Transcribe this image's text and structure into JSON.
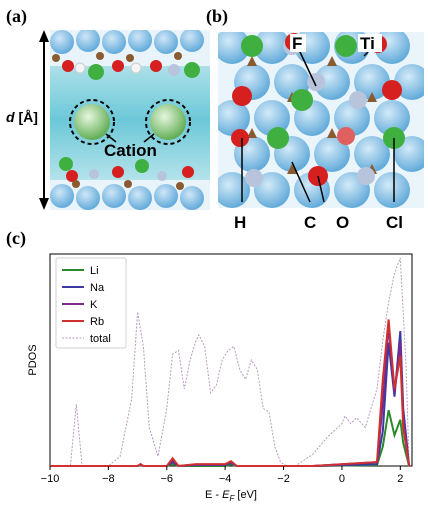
{
  "figure": {
    "panel_a": {
      "letter": "(a)",
      "d_label_main": "d",
      "d_label_unit": " [Å]",
      "cation_label": "Cation"
    },
    "panel_b": {
      "letter": "(b)",
      "labels": [
        "F",
        "Ti",
        "H",
        "C",
        "O",
        "Cl"
      ]
    },
    "panel_c": {
      "letter": "(c)"
    }
  },
  "chart_data": {
    "type": "line",
    "xlabel": "E - E_F [eV]",
    "ylabel": "PDOS",
    "xlim": [
      -10,
      2.4
    ],
    "x_ticks": [
      -10,
      -8,
      -6,
      -4,
      -2,
      0,
      2
    ],
    "x_tick_labels": [
      "−10",
      "−8",
      "−6",
      "−4",
      "−2",
      "0",
      "2"
    ],
    "legend_position": "top-left",
    "colors": {
      "Li": "#2a8a2a",
      "Na": "#3a3aa0",
      "K": "#7a2a8a",
      "Rb": "#d03030",
      "total": "#b89ac0"
    },
    "series": [
      {
        "name": "Li",
        "x": [
          -10,
          -7,
          -6.9,
          -6.8,
          -6,
          -5.8,
          -5.6,
          -5,
          -4,
          -3.8,
          -3.6,
          -3,
          -1,
          1.2,
          1.4,
          1.6,
          1.8,
          2.0,
          2.1,
          2.3
        ],
        "y": [
          0,
          0,
          0.004,
          0,
          0,
          0.01,
          0,
          0,
          0,
          0.008,
          0,
          0,
          0,
          0.005,
          0.1,
          0.29,
          0.16,
          0.24,
          0.12,
          0
        ]
      },
      {
        "name": "Na",
        "x": [
          -10,
          -7,
          -6.9,
          -6.8,
          -6,
          -5.8,
          -5.6,
          -5,
          -4,
          -3.8,
          -3.6,
          -3,
          -1,
          1.2,
          1.4,
          1.6,
          1.8,
          2.0,
          2.1,
          2.3
        ],
        "y": [
          0,
          0,
          0.006,
          0,
          0,
          0.02,
          0,
          0.005,
          0.005,
          0.015,
          0,
          0,
          0,
          0.01,
          0.18,
          0.64,
          0.36,
          0.7,
          0.3,
          0
        ]
      },
      {
        "name": "K",
        "x": [
          -10,
          -7,
          -6.9,
          -6.8,
          -6,
          -5.8,
          -5.6,
          -5,
          -4,
          -3.8,
          -3.6,
          -3,
          -1,
          1.2,
          1.4,
          1.6,
          1.8,
          2.0,
          2.1,
          2.3
        ],
        "y": [
          0,
          0,
          0.008,
          0,
          0,
          0.03,
          0,
          0.008,
          0.008,
          0.02,
          0,
          0,
          0,
          0.02,
          0.32,
          0.73,
          0.38,
          0.64,
          0.24,
          0
        ]
      },
      {
        "name": "Rb",
        "x": [
          -10,
          -7,
          -6.9,
          -6.8,
          -6,
          -5.8,
          -5.6,
          -5,
          -4,
          -3.8,
          -3.6,
          -3,
          -1,
          1.2,
          1.4,
          1.6,
          1.8,
          2.0,
          2.1,
          2.3
        ],
        "y": [
          0,
          0,
          0.01,
          0,
          0,
          0.04,
          0,
          0.01,
          0.01,
          0.025,
          0,
          0,
          0,
          0.02,
          0.45,
          0.76,
          0.4,
          0.57,
          0.2,
          0
        ]
      },
      {
        "name": "total",
        "x": [
          -10,
          -9.3,
          -9.1,
          -8.9,
          -8.5,
          -8,
          -7.6,
          -7.2,
          -7.0,
          -6.8,
          -6.6,
          -6.3,
          -6.0,
          -5.8,
          -5.6,
          -5.4,
          -5.2,
          -5.0,
          -4.9,
          -4.7,
          -4.5,
          -4.3,
          -4.1,
          -3.9,
          -3.7,
          -3.5,
          -3.3,
          -3.1,
          -2.9,
          -2.7,
          -2.5,
          -2.3,
          -2.1,
          -1.9,
          -1.6,
          -1.0,
          -0.5,
          0,
          0.1,
          0.3,
          0.5,
          0.8,
          1.0,
          1.2,
          1.4,
          1.6,
          1.8,
          2.0,
          2.2,
          2.3
        ],
        "y": [
          0,
          0,
          0.32,
          0,
          0,
          0,
          0.05,
          0.35,
          0.8,
          0.62,
          0.2,
          0.05,
          0.3,
          0.58,
          0.6,
          0.4,
          0.55,
          0.65,
          0.68,
          0.62,
          0.38,
          0.42,
          0.55,
          0.6,
          0.62,
          0.5,
          0.45,
          0.55,
          0.5,
          0.3,
          0.28,
          0.1,
          0.02,
          0,
          0,
          0.06,
          0.15,
          0.22,
          0.26,
          0.22,
          0.25,
          0.2,
          0.3,
          0.4,
          0.65,
          0.85,
          1.0,
          1.08,
          0.5,
          0
        ]
      }
    ]
  }
}
